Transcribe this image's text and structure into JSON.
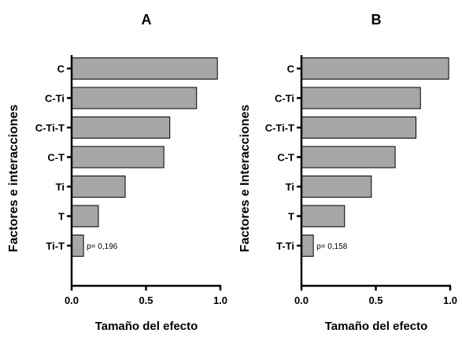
{
  "chart_data": [
    {
      "type": "bar",
      "orientation": "horizontal",
      "title": "A",
      "xlabel": "Tamaño del efecto",
      "ylabel": "Factores e interacciones",
      "xlim": [
        0,
        1
      ],
      "xticks": [
        "0.0",
        "0.5",
        "1.0"
      ],
      "grid": false,
      "bar_color": "#a6a6a6",
      "categories": [
        "C",
        "C-Ti",
        "C-Ti-T",
        "C-T",
        "Ti",
        "T",
        "Ti-T"
      ],
      "values": [
        0.98,
        0.84,
        0.66,
        0.62,
        0.36,
        0.18,
        0.08
      ],
      "annotation": "p= 0,196"
    },
    {
      "type": "bar",
      "orientation": "horizontal",
      "title": "B",
      "xlabel": "Tamaño del efecto",
      "ylabel": "Factores e Interacciones",
      "xlim": [
        0,
        1
      ],
      "xticks": [
        "0.0",
        "0.5",
        "1.0"
      ],
      "grid": false,
      "bar_color": "#a6a6a6",
      "categories": [
        "C",
        "C-Ti",
        "C-Ti-T",
        "C-T",
        "Ti",
        "T",
        "T-Ti"
      ],
      "values": [
        0.99,
        0.8,
        0.77,
        0.63,
        0.47,
        0.29,
        0.08
      ],
      "annotation": "p= 0,158"
    }
  ]
}
